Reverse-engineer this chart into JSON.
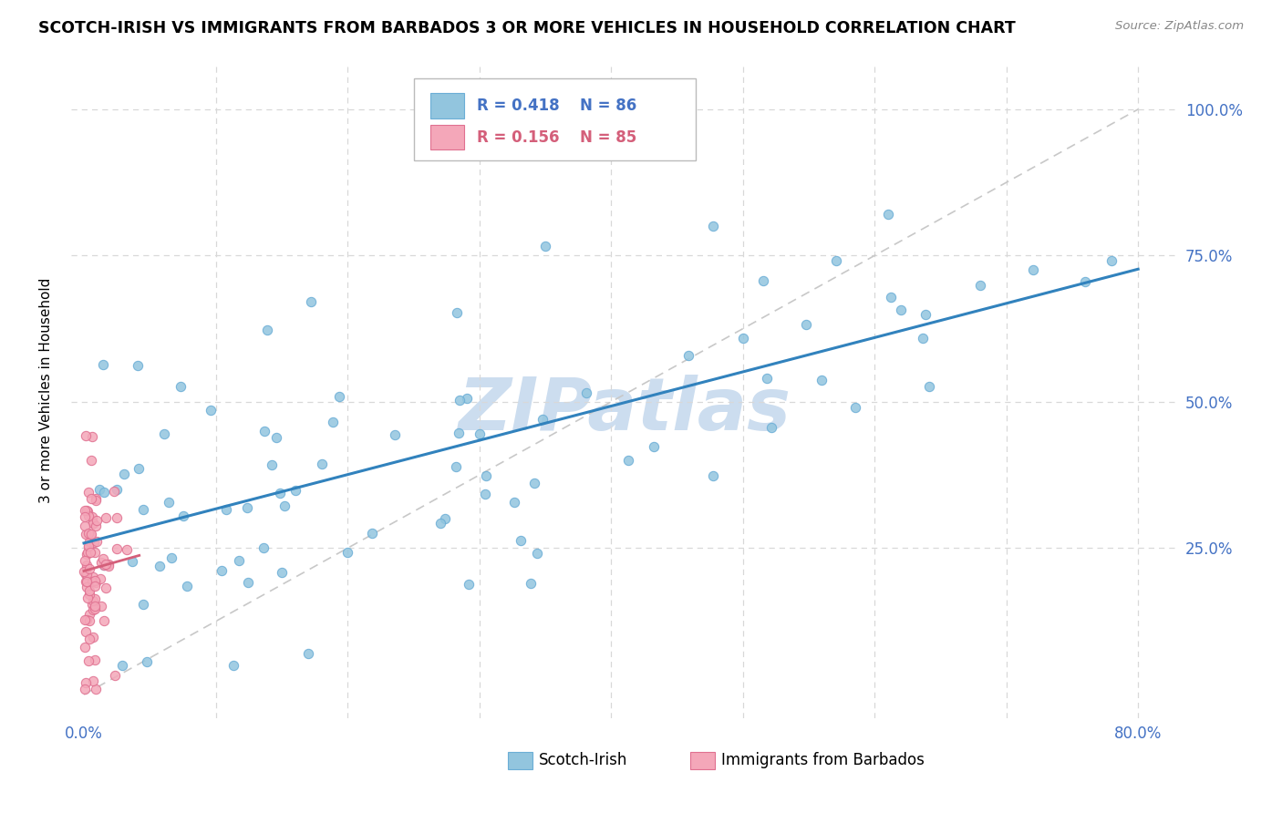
{
  "title": "SCOTCH-IRISH VS IMMIGRANTS FROM BARBADOS 3 OR MORE VEHICLES IN HOUSEHOLD CORRELATION CHART",
  "source": "Source: ZipAtlas.com",
  "ylabel": "3 or more Vehicles in Household",
  "blue_color": "#92c5de",
  "blue_edge_color": "#6baed6",
  "pink_color": "#f4a7b9",
  "pink_edge_color": "#e07090",
  "blue_line_color": "#3182bd",
  "pink_line_color": "#d45f7a",
  "ref_line_color": "#c8c8c8",
  "grid_color": "#d8d8d8",
  "watermark_color": "#ccddef",
  "watermark": "ZIPatlas",
  "legend_blue_r": "R = 0.418",
  "legend_blue_n": "N = 86",
  "legend_pink_r": "R = 0.156",
  "legend_pink_n": "N = 85",
  "tick_color": "#4472c4",
  "xlim": [
    0.0,
    0.8
  ],
  "ylim": [
    0.0,
    1.05
  ],
  "yticks": [
    0.0,
    0.25,
    0.5,
    0.75,
    1.0
  ],
  "ytick_labels_right": [
    "",
    "25.0%",
    "50.0%",
    "75.0%",
    "100.0%"
  ],
  "xtick_labels": [
    "0.0%",
    "80.0%"
  ]
}
